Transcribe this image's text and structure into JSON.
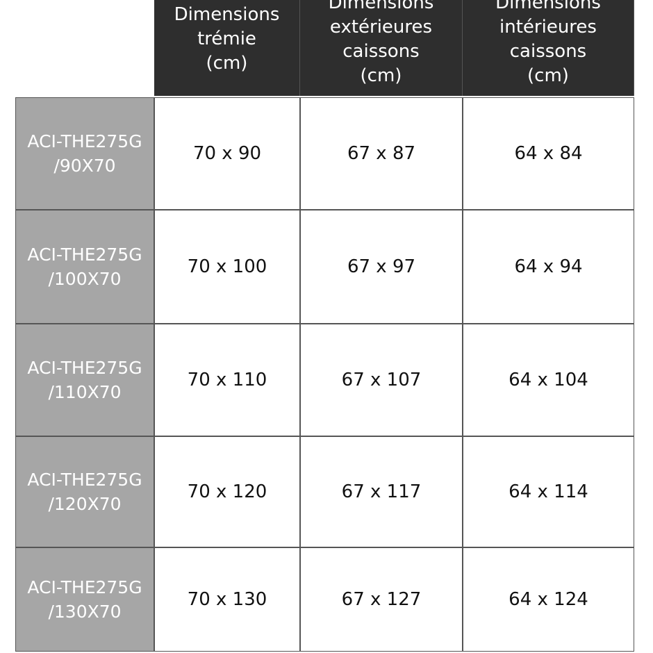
{
  "table": {
    "header": [
      [
        "Dimensions",
        "trémie",
        "(cm)"
      ],
      [
        "Dimensions",
        "extérieures",
        "caissons",
        "(cm)"
      ],
      [
        "Dimensions",
        "intérieures",
        "caissons",
        "(cm)"
      ]
    ],
    "rows": [
      {
        "label": [
          "ACI-THE275G",
          "/90X70"
        ],
        "cells": [
          "70 x 90",
          "67 x 87",
          "64 x 84"
        ]
      },
      {
        "label": [
          "ACI-THE275G",
          "/100X70"
        ],
        "cells": [
          "70 x 100",
          "67 x 97",
          "64 x 94"
        ]
      },
      {
        "label": [
          "ACI-THE275G",
          "/110X70"
        ],
        "cells": [
          "70 x 110",
          "67 x 107",
          "64 x 104"
        ]
      },
      {
        "label": [
          "ACI-THE275G",
          "/120X70"
        ],
        "cells": [
          "70 x 120",
          "67 x 117",
          "64 x 114"
        ]
      },
      {
        "label": [
          "ACI-THE275G",
          "/130X70"
        ],
        "cells": [
          "70 x 130",
          "67 x 127",
          "64 x 124"
        ]
      }
    ]
  }
}
